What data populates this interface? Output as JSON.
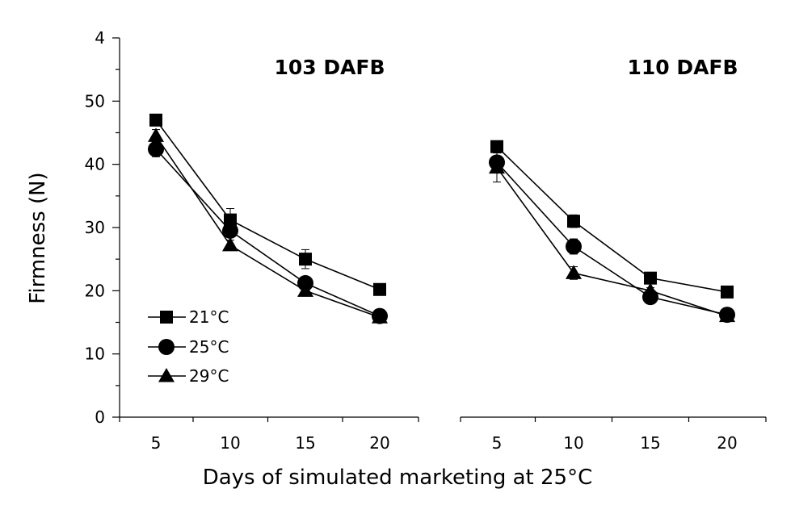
{
  "chart_data": {
    "type": "line",
    "ylabel": "Firmness (N)",
    "xlabel": "Days of simulated marketing at 25°C",
    "ylim": [
      0,
      60
    ],
    "yticks": [
      0,
      10,
      20,
      30,
      40,
      50
    ],
    "ytick_labels": [
      "0",
      "10",
      "20",
      "30",
      "40",
      "50"
    ],
    "top_label": "4",
    "x": [
      5,
      10,
      15,
      20
    ],
    "xtick_labels": [
      "5",
      "10",
      "15",
      "20"
    ],
    "legend": [
      "21°C",
      "25°C",
      "29°C"
    ],
    "panels": [
      {
        "title": "103 DAFB",
        "series": [
          {
            "name": "21°C",
            "marker": "square",
            "values": [
              47,
              31.2,
              25,
              20.2
            ],
            "err": [
              0.8,
              1.8,
              1.5,
              0.9
            ]
          },
          {
            "name": "25°C",
            "marker": "circle",
            "values": [
              42.4,
              29.5,
              21.2,
              16
            ],
            "err": [
              1.2,
              1,
              0.8,
              0.8
            ]
          },
          {
            "name": "29°C",
            "marker": "triangle",
            "values": [
              44.5,
              27.2,
              20,
              15.8
            ],
            "err": [
              1,
              0.8,
              0.6,
              0.8
            ]
          }
        ]
      },
      {
        "title": "110 DAFB",
        "series": [
          {
            "name": "21°C",
            "marker": "square",
            "values": [
              42.8,
              31,
              22,
              19.8
            ],
            "err": [
              0.6,
              1,
              0.5,
              0.8
            ]
          },
          {
            "name": "25°C",
            "marker": "circle",
            "values": [
              40.3,
              27,
              19,
              16.2
            ],
            "err": [
              1.5,
              1.2,
              0.6,
              0.8
            ]
          },
          {
            "name": "29°C",
            "marker": "triangle",
            "values": [
              39.5,
              22.8,
              20,
              16
            ],
            "err": [
              2.3,
              1,
              0.5,
              0.8
            ]
          }
        ]
      }
    ]
  }
}
